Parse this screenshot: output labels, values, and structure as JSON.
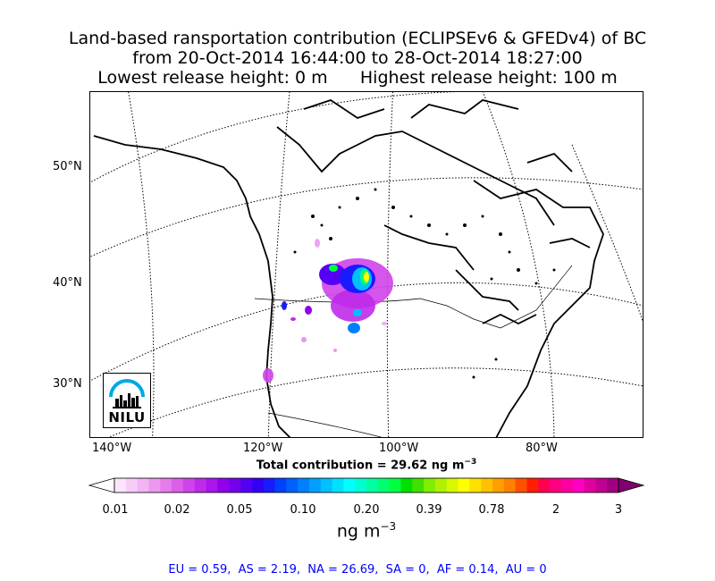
{
  "title": {
    "line1": "Land-based ransportation contribution (ECLIPSEv6 & GFEDv4) of BC",
    "line2": "from 20-Oct-2014 16:44:00 to 28-Oct-2014 18:27:00",
    "line3": "Lowest release height: 0 m      Highest release height: 100 m"
  },
  "map": {
    "lat_labels": [
      "50°N",
      "40°N",
      "30°N"
    ],
    "lon_labels": [
      "140°W",
      "120°W",
      "100°W",
      "80°W"
    ],
    "logo_text": "NILU"
  },
  "total_contribution": "Total contribution = 29.62 ng m",
  "total_exponent": "−3",
  "colorbar": {
    "tick_labels": [
      "0.01",
      "0.02",
      "0.05",
      "0.10",
      "0.20",
      "0.39",
      "0.78",
      "2",
      "3"
    ],
    "unit": "ng m",
    "unit_exponent": "−3",
    "colors": [
      "#ffffff",
      "#fbe6fb",
      "#f7cdf7",
      "#f2b4f2",
      "#ec98ee",
      "#e47cec",
      "#db5feb",
      "#cf44ea",
      "#bf2aea",
      "#ab14ea",
      "#9200ea",
      "#7500ee",
      "#5500f2",
      "#3300f5",
      "#1a1aff",
      "#0040ff",
      "#0060ff",
      "#0080ff",
      "#00a0ff",
      "#00c0ff",
      "#00e0ff",
      "#00ffff",
      "#00ffd0",
      "#00ffa0",
      "#00ff70",
      "#00ff40",
      "#00e000",
      "#40e000",
      "#80ee00",
      "#b0f000",
      "#d8f800",
      "#ffff00",
      "#ffe000",
      "#ffc000",
      "#ffa000",
      "#ff8000",
      "#ff5000",
      "#ff2000",
      "#ff0050",
      "#ff0080",
      "#ff00a0",
      "#ff00c0",
      "#e000a0",
      "#c00090",
      "#a00080",
      "#800070"
    ]
  },
  "regions_summary": "EU = 0.59,  AS = 2.19,  NA = 26.69,  SA = 0,  AF = 0.14,  AU = 0"
}
